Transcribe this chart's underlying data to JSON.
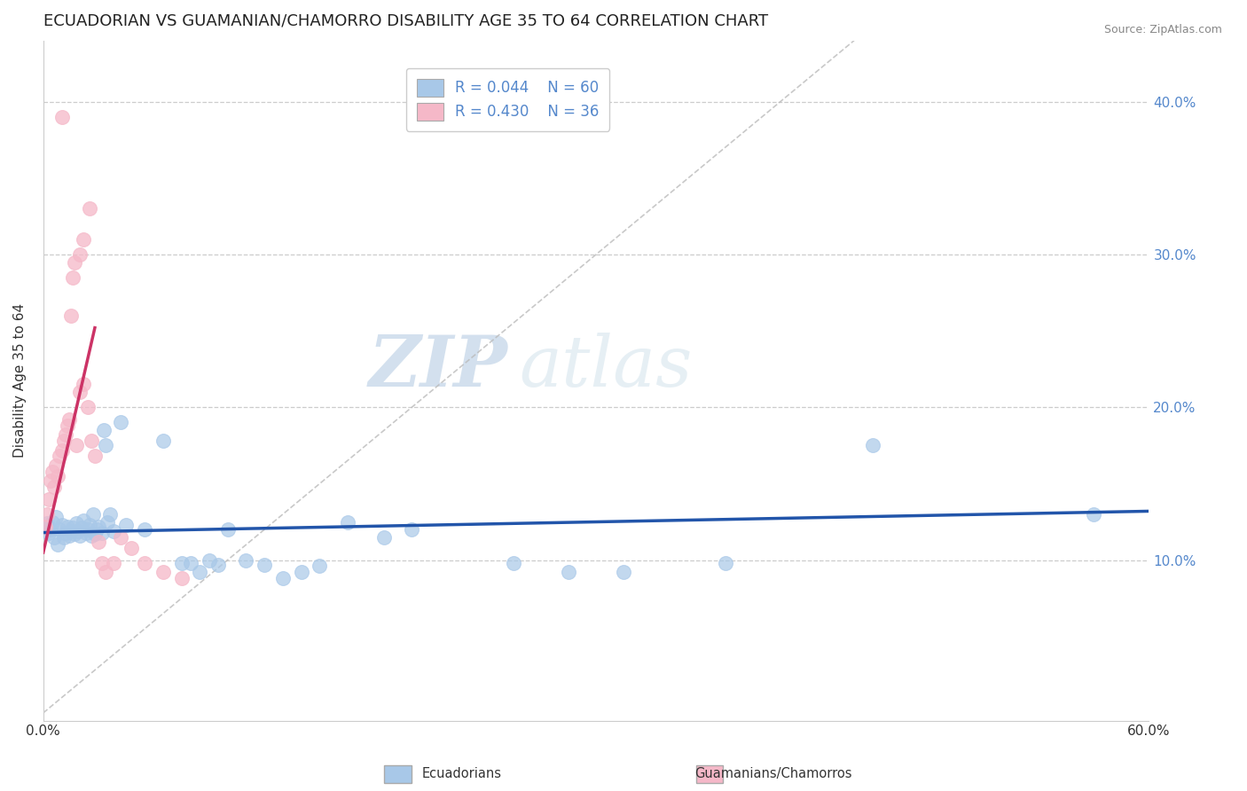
{
  "title": "ECUADORIAN VS GUAMANIAN/CHAMORRO DISABILITY AGE 35 TO 64 CORRELATION CHART",
  "source_text": "Source: ZipAtlas.com",
  "ylabel": "Disability Age 35 to 64",
  "legend_r1": "R = 0.044",
  "legend_n1": "N = 60",
  "legend_r2": "R = 0.430",
  "legend_n2": "N = 36",
  "blue_color": "#a8c8e8",
  "pink_color": "#f5b8c8",
  "blue_line_color": "#2255aa",
  "pink_line_color": "#cc3366",
  "blue_scatter": [
    [
      0.001,
      0.122
    ],
    [
      0.002,
      0.124
    ],
    [
      0.003,
      0.118
    ],
    [
      0.004,
      0.12
    ],
    [
      0.005,
      0.125
    ],
    [
      0.006,
      0.115
    ],
    [
      0.007,
      0.128
    ],
    [
      0.008,
      0.11
    ],
    [
      0.009,
      0.12
    ],
    [
      0.01,
      0.123
    ],
    [
      0.011,
      0.115
    ],
    [
      0.012,
      0.118
    ],
    [
      0.013,
      0.122
    ],
    [
      0.014,
      0.116
    ],
    [
      0.015,
      0.119
    ],
    [
      0.016,
      0.121
    ],
    [
      0.017,
      0.117
    ],
    [
      0.018,
      0.124
    ],
    [
      0.019,
      0.119
    ],
    [
      0.02,
      0.116
    ],
    [
      0.021,
      0.121
    ],
    [
      0.022,
      0.126
    ],
    [
      0.023,
      0.118
    ],
    [
      0.024,
      0.12
    ],
    [
      0.025,
      0.123
    ],
    [
      0.026,
      0.116
    ],
    [
      0.027,
      0.13
    ],
    [
      0.028,
      0.117
    ],
    [
      0.029,
      0.12
    ],
    [
      0.03,
      0.122
    ],
    [
      0.032,
      0.118
    ],
    [
      0.033,
      0.185
    ],
    [
      0.034,
      0.175
    ],
    [
      0.035,
      0.125
    ],
    [
      0.036,
      0.13
    ],
    [
      0.038,
      0.119
    ],
    [
      0.042,
      0.19
    ],
    [
      0.045,
      0.123
    ],
    [
      0.055,
      0.12
    ],
    [
      0.065,
      0.178
    ],
    [
      0.075,
      0.098
    ],
    [
      0.08,
      0.098
    ],
    [
      0.085,
      0.092
    ],
    [
      0.09,
      0.1
    ],
    [
      0.095,
      0.097
    ],
    [
      0.1,
      0.12
    ],
    [
      0.11,
      0.1
    ],
    [
      0.12,
      0.097
    ],
    [
      0.13,
      0.088
    ],
    [
      0.14,
      0.092
    ],
    [
      0.15,
      0.096
    ],
    [
      0.165,
      0.125
    ],
    [
      0.185,
      0.115
    ],
    [
      0.2,
      0.12
    ],
    [
      0.255,
      0.098
    ],
    [
      0.285,
      0.092
    ],
    [
      0.315,
      0.092
    ],
    [
      0.37,
      0.098
    ],
    [
      0.45,
      0.175
    ],
    [
      0.57,
      0.13
    ]
  ],
  "pink_scatter": [
    [
      0.001,
      0.122
    ],
    [
      0.002,
      0.13
    ],
    [
      0.003,
      0.14
    ],
    [
      0.004,
      0.152
    ],
    [
      0.005,
      0.158
    ],
    [
      0.006,
      0.148
    ],
    [
      0.007,
      0.162
    ],
    [
      0.008,
      0.155
    ],
    [
      0.009,
      0.168
    ],
    [
      0.01,
      0.172
    ],
    [
      0.011,
      0.178
    ],
    [
      0.012,
      0.182
    ],
    [
      0.013,
      0.188
    ],
    [
      0.014,
      0.192
    ],
    [
      0.015,
      0.26
    ],
    [
      0.016,
      0.285
    ],
    [
      0.017,
      0.295
    ],
    [
      0.018,
      0.175
    ],
    [
      0.02,
      0.21
    ],
    [
      0.022,
      0.215
    ],
    [
      0.024,
      0.2
    ],
    [
      0.026,
      0.178
    ],
    [
      0.028,
      0.168
    ],
    [
      0.03,
      0.112
    ],
    [
      0.032,
      0.098
    ],
    [
      0.034,
      0.092
    ],
    [
      0.038,
      0.098
    ],
    [
      0.042,
      0.115
    ],
    [
      0.048,
      0.108
    ],
    [
      0.055,
      0.098
    ],
    [
      0.065,
      0.092
    ],
    [
      0.075,
      0.088
    ],
    [
      0.01,
      0.39
    ],
    [
      0.025,
      0.33
    ],
    [
      0.022,
      0.31
    ],
    [
      0.02,
      0.3
    ]
  ],
  "xlim": [
    0.0,
    0.6
  ],
  "ylim": [
    -0.005,
    0.44
  ],
  "ytick_labels": [
    "10.0%",
    "20.0%",
    "30.0%",
    "40.0%"
  ],
  "ytick_values": [
    0.1,
    0.2,
    0.3,
    0.4
  ],
  "watermark_zip": "ZIP",
  "watermark_atlas": "atlas",
  "background_color": "#ffffff",
  "title_fontsize": 13,
  "axis_fontsize": 11,
  "tick_fontsize": 11,
  "legend_fontsize": 12
}
